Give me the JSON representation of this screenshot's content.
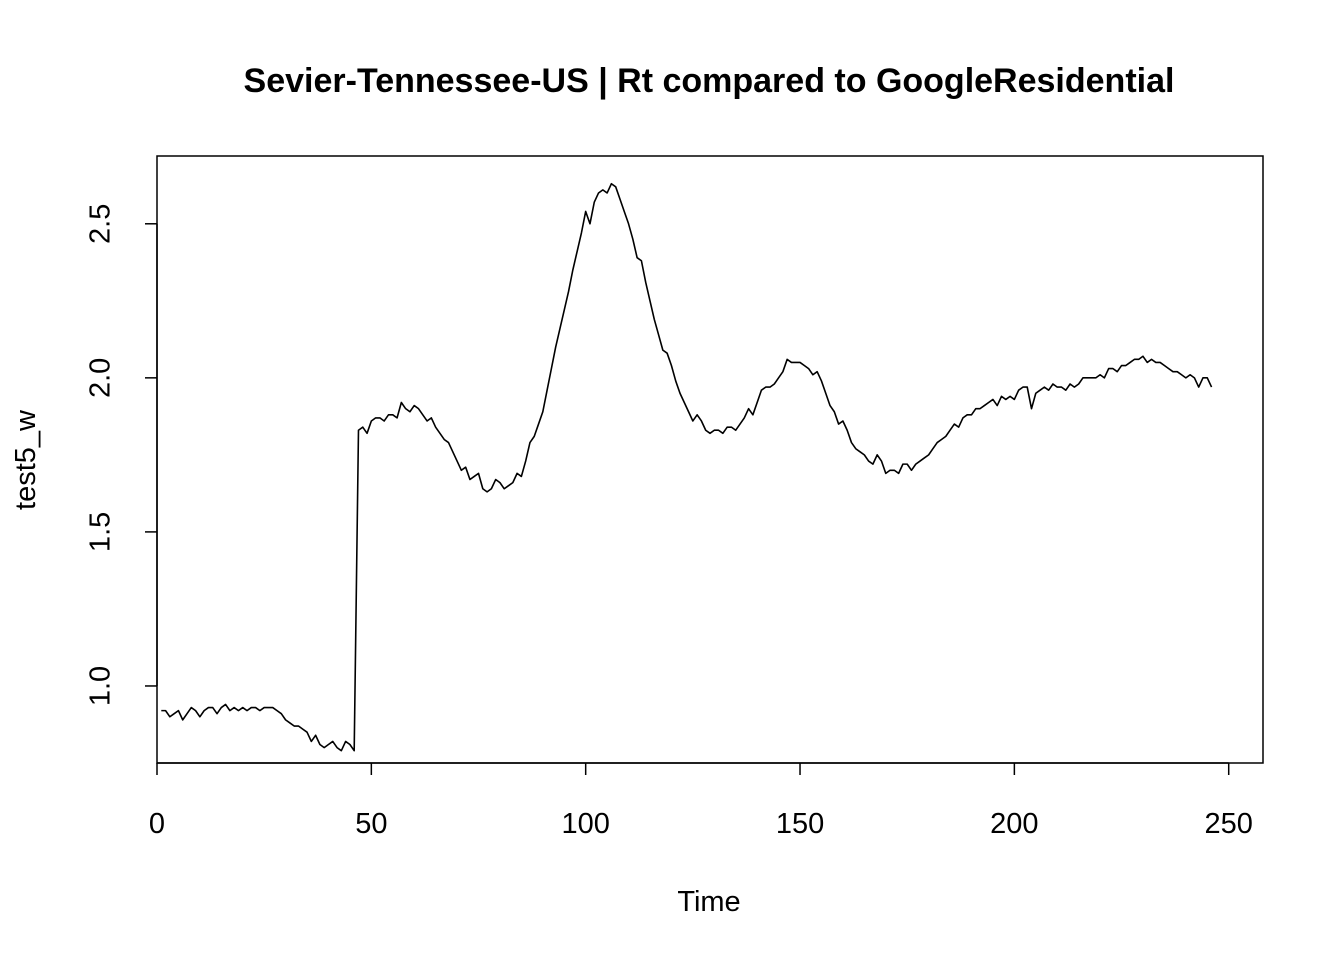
{
  "chart_data": {
    "type": "line",
    "title": "Sevier-Tennessee-US | Rt compared to GoogleResidential",
    "xlabel": "Time",
    "ylabel": "test5_w",
    "xlim": [
      0,
      258
    ],
    "ylim": [
      0.75,
      2.72
    ],
    "x_ticks": [
      0,
      50,
      100,
      150,
      200,
      250
    ],
    "x_tick_labels": [
      "0",
      "50",
      "100",
      "150",
      "200",
      "250"
    ],
    "y_ticks": [
      1.0,
      1.5,
      2.0,
      2.5
    ],
    "y_tick_labels": [
      "1.0",
      "1.5",
      "2.0",
      "2.5"
    ],
    "grid": false,
    "legend": "none",
    "colors": {
      "line": "#000000",
      "frame": "#000000",
      "background": "#ffffff"
    },
    "series": [
      {
        "x_start": 1,
        "values": [
          0.92,
          0.92,
          0.9,
          0.91,
          0.92,
          0.89,
          0.91,
          0.93,
          0.92,
          0.9,
          0.92,
          0.93,
          0.93,
          0.91,
          0.93,
          0.94,
          0.92,
          0.93,
          0.92,
          0.93,
          0.92,
          0.93,
          0.93,
          0.92,
          0.93,
          0.93,
          0.93,
          0.92,
          0.91,
          0.89,
          0.88,
          0.87,
          0.87,
          0.86,
          0.85,
          0.82,
          0.84,
          0.81,
          0.8,
          0.81,
          0.82,
          0.8,
          0.79,
          0.82,
          0.81,
          0.79,
          1.83,
          1.84,
          1.82,
          1.86,
          1.87,
          1.87,
          1.86,
          1.88,
          1.88,
          1.87,
          1.92,
          1.9,
          1.89,
          1.91,
          1.9,
          1.88,
          1.86,
          1.87,
          1.84,
          1.82,
          1.8,
          1.79,
          1.76,
          1.73,
          1.7,
          1.71,
          1.67,
          1.68,
          1.69,
          1.64,
          1.63,
          1.64,
          1.67,
          1.66,
          1.64,
          1.65,
          1.66,
          1.69,
          1.68,
          1.73,
          1.79,
          1.81,
          1.85,
          1.89,
          1.96,
          2.03,
          2.1,
          2.16,
          2.22,
          2.28,
          2.35,
          2.41,
          2.47,
          2.54,
          2.5,
          2.57,
          2.6,
          2.61,
          2.6,
          2.63,
          2.62,
          2.58,
          2.54,
          2.5,
          2.45,
          2.39,
          2.38,
          2.31,
          2.25,
          2.19,
          2.14,
          2.09,
          2.08,
          2.04,
          1.99,
          1.95,
          1.92,
          1.89,
          1.86,
          1.88,
          1.86,
          1.83,
          1.82,
          1.83,
          1.83,
          1.82,
          1.84,
          1.84,
          1.83,
          1.85,
          1.87,
          1.9,
          1.88,
          1.92,
          1.96,
          1.97,
          1.97,
          1.98,
          2.0,
          2.02,
          2.06,
          2.05,
          2.05,
          2.05,
          2.04,
          2.03,
          2.01,
          2.02,
          1.99,
          1.95,
          1.91,
          1.89,
          1.85,
          1.86,
          1.83,
          1.79,
          1.77,
          1.76,
          1.75,
          1.73,
          1.72,
          1.75,
          1.73,
          1.69,
          1.7,
          1.7,
          1.69,
          1.72,
          1.72,
          1.7,
          1.72,
          1.73,
          1.74,
          1.75,
          1.77,
          1.79,
          1.8,
          1.81,
          1.83,
          1.85,
          1.84,
          1.87,
          1.88,
          1.88,
          1.9,
          1.9,
          1.91,
          1.92,
          1.93,
          1.91,
          1.94,
          1.93,
          1.94,
          1.93,
          1.96,
          1.97,
          1.97,
          1.9,
          1.95,
          1.96,
          1.97,
          1.96,
          1.98,
          1.97,
          1.97,
          1.96,
          1.98,
          1.97,
          1.98,
          2.0,
          2.0,
          2.0,
          2.0,
          2.01,
          2.0,
          2.03,
          2.03,
          2.02,
          2.04,
          2.04,
          2.05,
          2.06,
          2.06,
          2.07,
          2.05,
          2.06,
          2.05,
          2.05,
          2.04,
          2.03,
          2.02,
          2.02,
          2.01,
          2.0,
          2.01,
          2.0,
          1.97,
          2.0,
          2.0,
          1.97
        ]
      }
    ]
  }
}
